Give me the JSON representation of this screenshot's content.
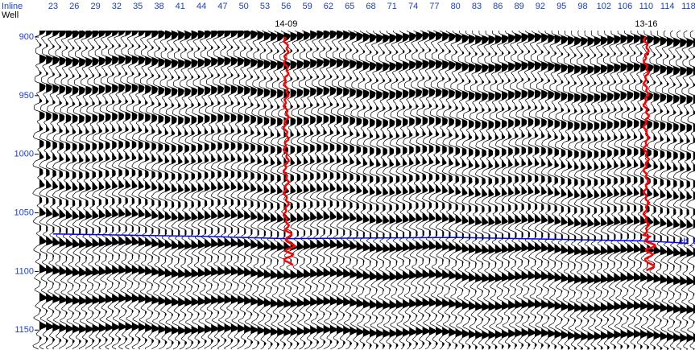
{
  "chart_data": {
    "type": "seismic",
    "x_label": "Inline",
    "y_label": "Well",
    "categories": [
      23,
      26,
      29,
      32,
      35,
      38,
      41,
      44,
      47,
      50,
      53,
      56,
      59,
      62,
      65,
      68,
      71,
      74,
      77,
      80,
      83,
      86,
      89,
      92,
      95,
      98,
      102,
      106,
      110,
      114,
      118
    ],
    "ylim": [
      900,
      1167
    ],
    "yticks": [
      900,
      950,
      1000,
      1050,
      1100,
      1150
    ],
    "wells": [
      {
        "name": "14-09",
        "inline": 56,
        "top": 900,
        "bottom": 1095,
        "color": "#ff0000"
      },
      {
        "name": "13-16",
        "inline": 110,
        "top": 900,
        "bottom": 1100,
        "color": "#ff0000"
      }
    ],
    "horizon": {
      "name": "ch_t",
      "color": "#0000ff",
      "x": [
        23,
        44,
        56,
        80,
        98,
        110,
        118
      ],
      "values": [
        1068,
        1070,
        1072,
        1071,
        1073,
        1074,
        1076
      ]
    }
  }
}
